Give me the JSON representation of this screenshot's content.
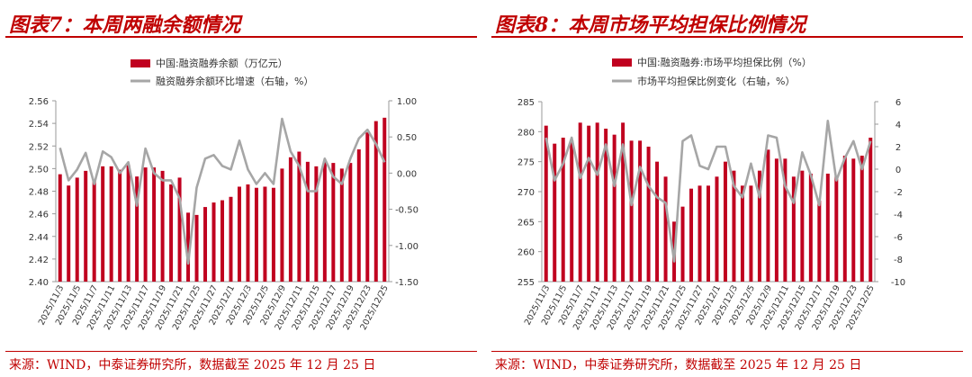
{
  "charts": [
    {
      "figure_title": "图表7：本周两融余额情况",
      "source": "来源：WIND，中泰证券研究所，数据截至 2025 年 12 月 25 日"
    },
    {
      "figure_title": "图表8：本周市场平均担保比例情况",
      "source": "来源：WIND，中泰证券研究所，数据截至 2025 年 12 月 25 日"
    }
  ],
  "colors": {
    "bar": "#c0001f",
    "line": "#a6a6a6",
    "accent": "#c00000"
  },
  "chart_data": [
    {
      "type": "bar+line",
      "title": "图表7：本周两融余额情况",
      "categories": [
        "2025/11/3",
        "2025/11/4",
        "2025/11/5",
        "2025/11/6",
        "2025/11/7",
        "2025/11/10",
        "2025/11/11",
        "2025/11/12",
        "2025/11/13",
        "2025/11/14",
        "2025/11/17",
        "2025/11/18",
        "2025/11/19",
        "2025/11/20",
        "2025/11/21",
        "2025/11/24",
        "2025/11/25",
        "2025/11/26",
        "2025/11/27",
        "2025/11/28",
        "2025/12/1",
        "2025/12/2",
        "2025/12/3",
        "2025/12/4",
        "2025/12/5",
        "2025/12/8",
        "2025/12/9",
        "2025/12/10",
        "2025/12/11",
        "2025/12/12",
        "2025/12/15",
        "2025/12/16",
        "2025/12/17",
        "2025/12/18",
        "2025/12/19",
        "2025/12/22",
        "2025/12/23",
        "2025/12/24",
        "2025/12/25"
      ],
      "x_tick_labels": [
        "2025/11/3",
        "2025/11/5",
        "2025/11/7",
        "2025/11/11",
        "2025/11/13",
        "2025/11/17",
        "2025/11/19",
        "2025/11/21",
        "2025/11/25",
        "2025/11/27",
        "2025/12/1",
        "2025/12/3",
        "2025/12/5",
        "2025/12/9",
        "2025/12/11",
        "2025/12/15",
        "2025/12/17",
        "2025/12/19",
        "2025/12/23",
        "2025/12/25"
      ],
      "series": [
        {
          "name": "中国:融资融券余额（万亿元）",
          "axis": "left",
          "kind": "bar",
          "values": [
            2.495,
            2.485,
            2.492,
            2.498,
            2.49,
            2.502,
            2.502,
            2.499,
            2.503,
            2.493,
            2.501,
            2.501,
            2.498,
            2.486,
            2.492,
            2.461,
            2.459,
            2.466,
            2.47,
            2.472,
            2.475,
            2.484,
            2.486,
            2.483,
            2.484,
            2.483,
            2.5,
            2.51,
            2.515,
            2.506,
            2.502,
            2.506,
            2.505,
            2.5,
            2.505,
            2.517,
            2.532,
            2.542,
            2.545
          ]
        },
        {
          "name": "融资融券余额环比增速（右轴，%）",
          "axis": "right",
          "kind": "line",
          "values": [
            0.35,
            -0.1,
            0.05,
            0.28,
            -0.15,
            0.3,
            0.22,
            0.0,
            0.15,
            -0.45,
            0.34,
            0.0,
            -0.1,
            -0.1,
            -0.35,
            -1.25,
            -0.2,
            0.2,
            0.25,
            0.1,
            0.05,
            0.45,
            0.05,
            -0.15,
            0.0,
            -0.15,
            0.75,
            0.3,
            0.1,
            -0.25,
            -0.25,
            0.2,
            -0.05,
            -0.15,
            0.2,
            0.48,
            0.6,
            0.4,
            0.15
          ]
        }
      ],
      "y_left": {
        "min": 2.4,
        "max": 2.56,
        "ticks": [
          "2.40",
          "2.42",
          "2.44",
          "2.46",
          "2.48",
          "2.50",
          "2.52",
          "2.54",
          "2.56"
        ]
      },
      "y_right": {
        "min": -1.5,
        "max": 1.0,
        "ticks": [
          "-1.50",
          "-1.00",
          "-0.50",
          "0.00",
          "0.50",
          "1.00"
        ]
      },
      "legend_position": "top-center"
    },
    {
      "type": "bar+line",
      "title": "图表8：本周市场平均担保比例情况",
      "categories": [
        "2025/11/3",
        "2025/11/4",
        "2025/11/5",
        "2025/11/6",
        "2025/11/7",
        "2025/11/10",
        "2025/11/11",
        "2025/11/12",
        "2025/11/13",
        "2025/11/14",
        "2025/11/17",
        "2025/11/18",
        "2025/11/19",
        "2025/11/20",
        "2025/11/21",
        "2025/11/24",
        "2025/11/25",
        "2025/11/26",
        "2025/11/27",
        "2025/11/28",
        "2025/12/1",
        "2025/12/2",
        "2025/12/3",
        "2025/12/4",
        "2025/12/5",
        "2025/12/8",
        "2025/12/9",
        "2025/12/10",
        "2025/12/11",
        "2025/12/12",
        "2025/12/15",
        "2025/12/16",
        "2025/12/17",
        "2025/12/18",
        "2025/12/19",
        "2025/12/22",
        "2025/12/23",
        "2025/12/24",
        "2025/12/25"
      ],
      "x_tick_labels": [
        "2025/11/3",
        "2025/11/5",
        "2025/11/7",
        "2025/11/11",
        "2025/11/13",
        "2025/11/17",
        "2025/11/19",
        "2025/11/21",
        "2025/11/25",
        "2025/11/27",
        "2025/12/1",
        "2025/12/3",
        "2025/12/5",
        "2025/12/9",
        "2025/12/11",
        "2025/12/15",
        "2025/12/17",
        "2025/12/19",
        "2025/12/23",
        "2025/12/25"
      ],
      "series": [
        {
          "name": "中国:融资融券:市场平均担保比例（%）",
          "axis": "left",
          "kind": "bar",
          "values": [
            281.0,
            278.0,
            279.0,
            278.5,
            281.5,
            281.0,
            281.5,
            280.5,
            279.5,
            281.5,
            278.5,
            278.5,
            277.5,
            275.0,
            272.5,
            265.0,
            267.5,
            270.5,
            271.0,
            271.0,
            272.5,
            275.0,
            273.5,
            271.0,
            271.0,
            273.5,
            277.0,
            275.5,
            275.5,
            272.5,
            273.5,
            273.0,
            268.5,
            273.0,
            272.5,
            276.0,
            275.5,
            276.0,
            279.0
          ]
        },
        {
          "name": "市场平均担保比例变化（右轴，%）",
          "axis": "right",
          "kind": "line",
          "values": [
            2.8,
            -1.0,
            0.5,
            2.8,
            -0.8,
            1.0,
            -0.5,
            2.2,
            -1.5,
            2.2,
            -3.2,
            0.2,
            -1.5,
            -2.5,
            -3.0,
            -8.2,
            2.5,
            3.0,
            0.3,
            0.0,
            2.0,
            2.0,
            -1.5,
            -2.5,
            0.5,
            -2.5,
            3.0,
            2.8,
            -1.5,
            -3.0,
            1.5,
            -0.5,
            -3.2,
            4.3,
            -1.0,
            1.0,
            2.5,
            0.0,
            2.5
          ]
        }
      ],
      "y_left": {
        "min": 255,
        "max": 285,
        "ticks": [
          "255",
          "260",
          "265",
          "270",
          "275",
          "280",
          "285"
        ]
      },
      "y_right": {
        "min": -10,
        "max": 6,
        "ticks": [
          "-10",
          "-8",
          "-6",
          "-4",
          "-2",
          "0",
          "2",
          "4",
          "6"
        ]
      },
      "legend_position": "top-center"
    }
  ]
}
